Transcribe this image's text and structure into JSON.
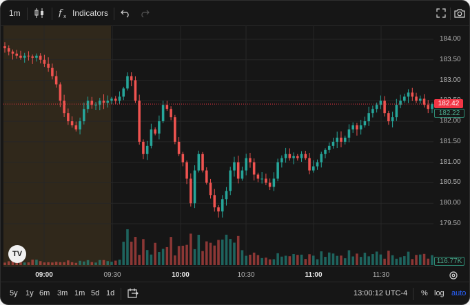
{
  "toolbar": {
    "interval": "1m",
    "indicators_label": "Indicators",
    "icons": [
      "candles-icon",
      "indicators-fx-icon",
      "undo-icon",
      "redo-icon",
      "fullscreen-icon",
      "camera-icon"
    ]
  },
  "colors": {
    "up": "#26a69a",
    "down": "#ef5350",
    "highlight": "#3a2f1e",
    "last_price": "#f23645"
  },
  "chart_data": {
    "type": "candlestick",
    "interval": "1m",
    "y_ticks": [
      "184.00",
      "183.50",
      "183.00",
      "182.50",
      "182.00",
      "181.50",
      "181.00",
      "180.50",
      "180.00",
      "179.50"
    ],
    "y_min": 179.5,
    "y_max": 184.0,
    "last_price": "182.42",
    "second_price": "182.22",
    "volume_label": "116.77K",
    "x_ticks": [
      {
        "label": "09:00",
        "major": true
      },
      {
        "label": "09:30",
        "major": false
      },
      {
        "label": "10:00",
        "major": true
      },
      {
        "label": "10:30",
        "major": false
      },
      {
        "label": "11:00",
        "major": true
      },
      {
        "label": "11:30",
        "major": false
      }
    ],
    "premarket_highlight": true,
    "close_series": [
      183.78,
      183.7,
      183.65,
      183.6,
      183.55,
      183.6,
      183.58,
      183.55,
      183.6,
      183.5,
      183.4,
      183.3,
      183.1,
      182.9,
      182.5,
      182.2,
      182.0,
      181.9,
      181.8,
      182.0,
      182.3,
      182.5,
      182.4,
      182.4,
      182.5,
      182.45,
      182.5,
      182.55,
      182.5,
      182.6,
      182.8,
      183.1,
      183.0,
      182.5,
      181.5,
      181.2,
      181.4,
      181.8,
      181.7,
      182.0,
      182.4,
      182.3,
      182.1,
      181.5,
      181.2,
      181.0,
      180.6,
      180.0,
      180.8,
      181.2,
      180.8,
      180.5,
      180.2,
      179.9,
      179.8,
      180.1,
      180.3,
      180.8,
      181.0,
      180.6,
      180.8,
      181.1,
      181.0,
      180.7,
      180.6,
      180.6,
      180.5,
      180.4,
      180.6,
      181.0,
      181.1,
      181.2,
      181.1,
      181.15,
      181.1,
      181.2,
      181.1,
      180.8,
      180.9,
      181.0,
      181.2,
      181.3,
      181.4,
      181.5,
      181.6,
      181.5,
      181.6,
      181.8,
      181.9,
      181.8,
      181.9,
      182.0,
      182.2,
      182.3,
      182.4,
      182.5,
      182.2,
      182.0,
      182.1,
      182.4,
      182.5,
      182.6,
      182.7,
      182.6,
      182.5,
      182.55,
      182.4,
      182.3,
      182.42
    ]
  },
  "time_axis_settings_icon": "settings-icon",
  "bottom": {
    "ranges": [
      "5y",
      "1y",
      "6m",
      "3m",
      "1m",
      "5d",
      "1d"
    ],
    "compare_icon": "date-range-icon",
    "clock": "13:00:12 UTC-4",
    "percent_label": "%",
    "log_label": "log",
    "auto_label": "auto"
  },
  "logo_text": "TV"
}
